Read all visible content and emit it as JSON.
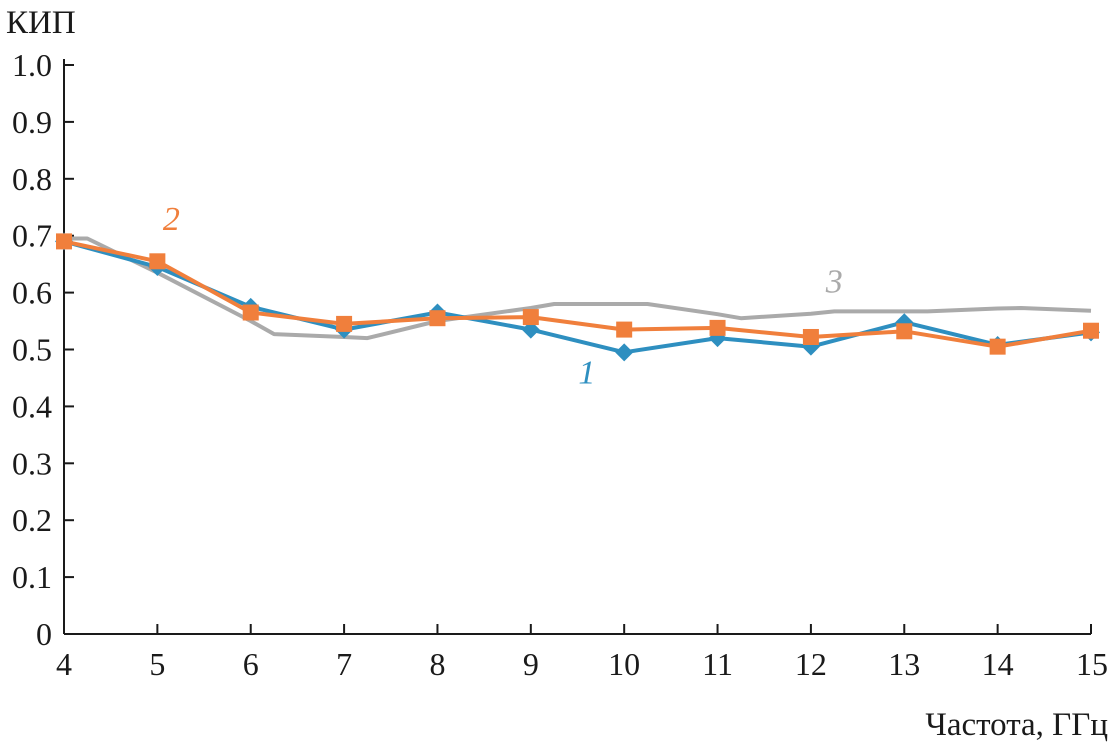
{
  "chart_data": {
    "type": "line",
    "ylabel": "КИП",
    "xlabel": "Частота, ГГц",
    "xlim": [
      4,
      15
    ],
    "ylim": [
      0,
      1.0
    ],
    "x_ticks": [
      "4",
      "5",
      "6",
      "7",
      "8",
      "9",
      "10",
      "11",
      "12",
      "13",
      "14",
      "15"
    ],
    "y_ticks": [
      "0",
      "0.1",
      "0.2",
      "0.3",
      "0.4",
      "0.5",
      "0.6",
      "0.7",
      "0.8",
      "0.9",
      "1.0"
    ],
    "grid": false,
    "series": [
      {
        "name": "1",
        "color": "#2e8fc0",
        "marker": "diamond",
        "x": [
          4,
          5,
          6,
          7,
          8,
          9,
          10,
          11,
          12,
          13,
          14,
          15
        ],
        "y": [
          0.69,
          0.645,
          0.575,
          0.535,
          0.565,
          0.535,
          0.495,
          0.52,
          0.505,
          0.548,
          0.508,
          0.53
        ]
      },
      {
        "name": "2",
        "color": "#f07f3c",
        "marker": "square",
        "x": [
          4,
          5,
          6,
          7,
          8,
          9,
          10,
          11,
          12,
          13,
          14,
          15
        ],
        "y": [
          0.69,
          0.655,
          0.565,
          0.545,
          0.555,
          0.557,
          0.535,
          0.538,
          0.522,
          0.532,
          0.505,
          0.533
        ]
      },
      {
        "name": "3",
        "color": "#aaaaaa",
        "marker": "none",
        "x": [
          4,
          4.25,
          5,
          6,
          6.25,
          7,
          7.25,
          8,
          9,
          9.25,
          10,
          10.25,
          11,
          11.25,
          12,
          12.25,
          13,
          13.25,
          14,
          14.25,
          15
        ],
        "y": [
          0.695,
          0.695,
          0.635,
          0.55,
          0.527,
          0.522,
          0.52,
          0.55,
          0.573,
          0.58,
          0.58,
          0.58,
          0.562,
          0.555,
          0.563,
          0.567,
          0.567,
          0.567,
          0.572,
          0.573,
          0.568
        ]
      }
    ],
    "annotations": [
      {
        "text": "1",
        "series": 0,
        "x": 9.6,
        "y": 0.44
      },
      {
        "text": "2",
        "series": 1,
        "x": 5.15,
        "y": 0.71
      },
      {
        "text": "3",
        "series": 2,
        "x": 12.25,
        "y": 0.6
      }
    ]
  }
}
